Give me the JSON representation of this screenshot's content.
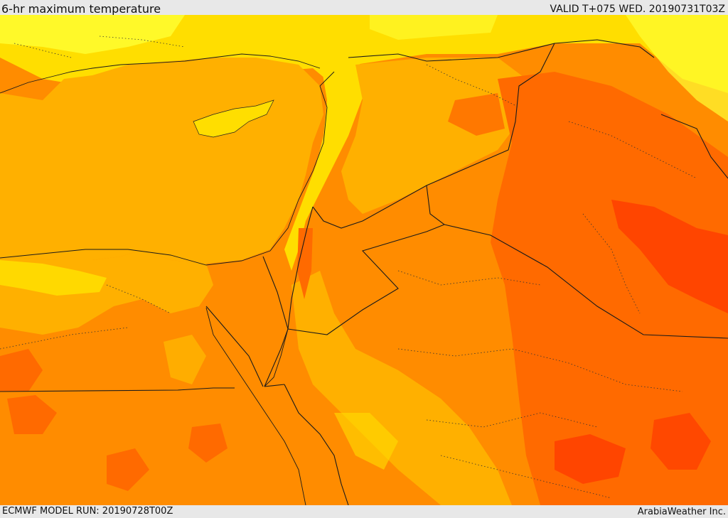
{
  "header": {
    "title": "6-hr maximum temperature",
    "valid": "VALID T+075 WED. 20190731T03Z"
  },
  "footer": {
    "model_run": "ECMWF MODEL RUN: 20190728T00Z",
    "brand": "ArabiaWeather Inc."
  },
  "map": {
    "variable": "6-hr maximum temperature",
    "color_scale": [
      "#ffff33",
      "#ffde00",
      "#ffb000",
      "#ff8c00",
      "#ff6a00",
      "#ff4500",
      "#ff2a00"
    ]
  }
}
